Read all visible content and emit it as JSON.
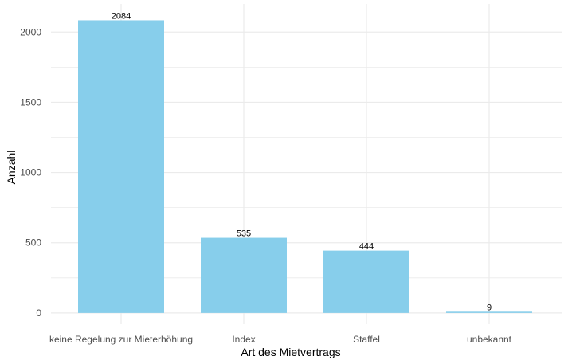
{
  "chart_data": {
    "type": "bar",
    "categories": [
      "keine Regelung zur Mieterhöhung",
      "Index",
      "Staffel",
      "unbekannt"
    ],
    "values": [
      2084,
      535,
      444,
      9
    ],
    "data_labels": [
      "2084",
      "535",
      "444",
      "9"
    ],
    "xlabel": "Art des Mietvertrags",
    "ylabel": "Anzahl",
    "ylim": [
      -80,
      2200
    ],
    "yticks": [
      0,
      500,
      1000,
      1500,
      2000
    ],
    "yticks_minor": [
      250,
      750,
      1250,
      1750,
      2250
    ],
    "grid": true,
    "legend": "none",
    "colors": {
      "bar": "#87CEEB",
      "grid": "#EBEBEB",
      "background": "#FFFFFF"
    }
  }
}
